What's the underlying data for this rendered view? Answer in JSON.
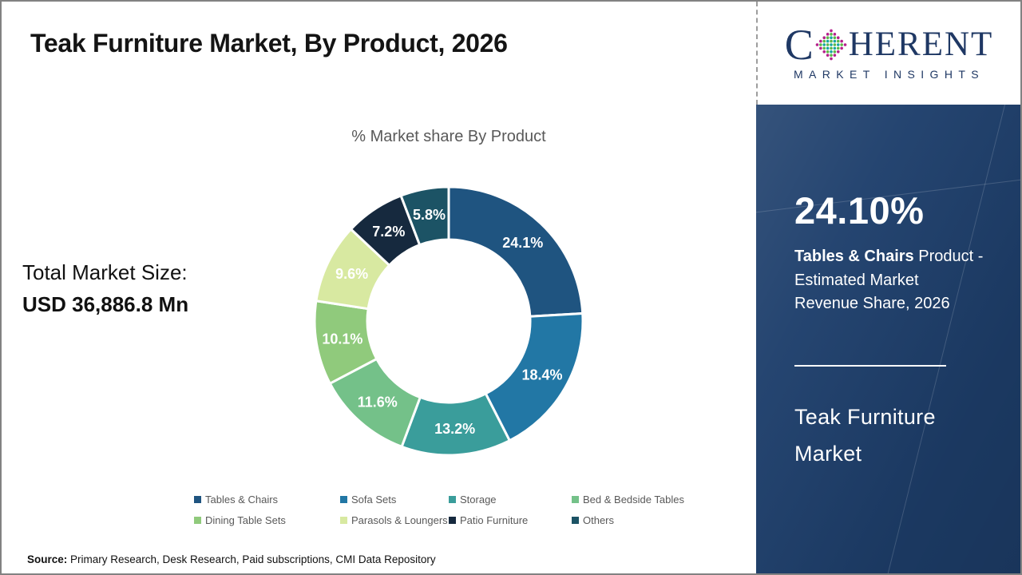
{
  "header": {
    "title": "Teak Furniture Market, By Product, 2026"
  },
  "logo": {
    "brand_prefix": "C",
    "brand_suffix": "HERENT",
    "tagline": "MARKET INSIGHTS",
    "brand_color": "#1F3864",
    "globe_dot_colors": {
      "inner_teal": "#16A7A2",
      "inner_green": "#5CB848",
      "outer_magenta": "#B5208C"
    }
  },
  "market_size": {
    "label": "Total Market Size:",
    "value": "USD 36,886.8 Mn"
  },
  "chart_data": {
    "type": "pie",
    "donut": true,
    "title": "% Market share By Product",
    "start_angle_deg": 0,
    "direction": "clockwise",
    "legend_position": "bottom",
    "categories": [
      "Tables & Chairs",
      "Sofa Sets",
      "Storage",
      "Bed & Bedside Tables",
      "Dining Table Sets",
      "Parasols & Loungers",
      "Patio Furniture",
      "Others"
    ],
    "values": [
      24.1,
      18.4,
      13.2,
      11.6,
      10.1,
      9.6,
      7.2,
      5.8
    ],
    "labels": [
      "24.1%",
      "18.4%",
      "13.2%",
      "11.6%",
      "10.1%",
      "9.6%",
      "7.2%",
      "5.8%"
    ],
    "colors": [
      "#1F5480",
      "#2277A5",
      "#3A9D9B",
      "#74C189",
      "#90CA7C",
      "#D8E9A1",
      "#16293E",
      "#1C5365"
    ]
  },
  "sidebar": {
    "bg_color": "#1E3F6C",
    "highlight_value": "24.10%",
    "highlight_desc_bold": "Tables & Chairs",
    "highlight_desc_line1_rest": " Product -",
    "highlight_desc_line2": "Estimated Market",
    "highlight_desc_line3": "Revenue Share, 2026",
    "market_name": "Teak Furniture Market"
  },
  "footer": {
    "source_label": "Source:",
    "source_text": " Primary Research, Desk Research, Paid subscriptions, CMI Data Repository"
  }
}
